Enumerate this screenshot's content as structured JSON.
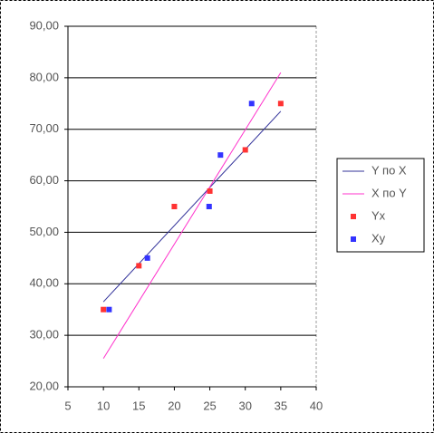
{
  "chart_data": {
    "type": "scatter",
    "xlim": [
      5,
      40
    ],
    "xticks": [
      5,
      10,
      15,
      20,
      25,
      30,
      35,
      40
    ],
    "ylim": [
      20,
      90
    ],
    "yticks": [
      {
        "value": 20,
        "label": "20,00"
      },
      {
        "value": 30,
        "label": "30,00"
      },
      {
        "value": 40,
        "label": "40,00"
      },
      {
        "value": 50,
        "label": "50,00"
      },
      {
        "value": 60,
        "label": "60,00"
      },
      {
        "value": 70,
        "label": "70,00"
      },
      {
        "value": 80,
        "label": "80,00"
      },
      {
        "value": 90,
        "label": "90,00"
      }
    ],
    "grid": true,
    "legend": "right",
    "series": [
      {
        "name": "Y по X",
        "color": "#33339a",
        "style": "line",
        "x": [
          10,
          35
        ],
        "values": [
          36.5,
          73.5
        ]
      },
      {
        "name": "X по Y",
        "color": "#ff33cc",
        "style": "line",
        "x": [
          10,
          35
        ],
        "values": [
          25.5,
          81
        ]
      },
      {
        "name": "Yx",
        "color": "#ff3333",
        "style": "square",
        "x": [
          10,
          15,
          20,
          25,
          30,
          35
        ],
        "values": [
          35,
          43.5,
          55,
          58,
          66,
          75
        ]
      },
      {
        "name": "Xy",
        "color": "#3333ff",
        "style": "square",
        "x": [
          10.8,
          16.2,
          24.9,
          26.5,
          30.9
        ],
        "values": [
          35,
          45,
          55,
          65,
          75
        ]
      }
    ]
  }
}
